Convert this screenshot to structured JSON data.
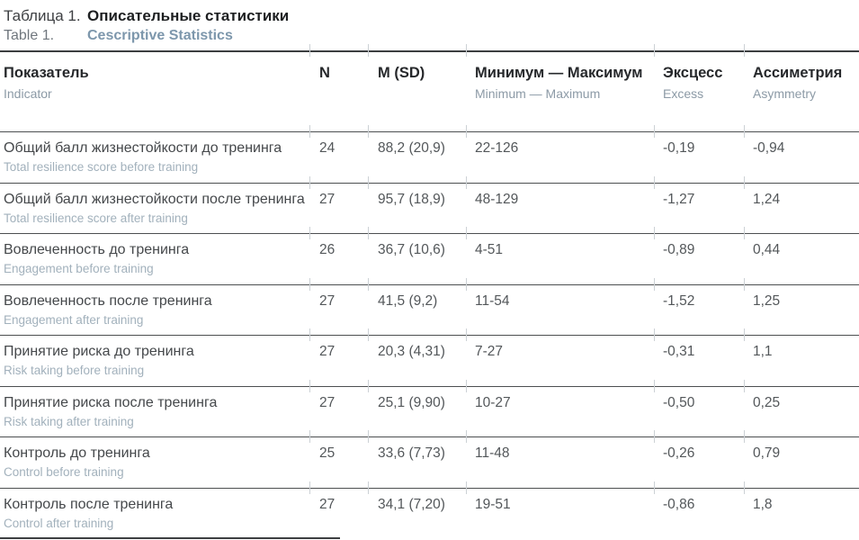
{
  "caption": {
    "label_ru": "Таблица 1.",
    "title_ru": "Описательные статистики",
    "label_en": "Table 1.",
    "title_en": "Cescriptive Statistics"
  },
  "table": {
    "header": {
      "indicator": {
        "ru": "Показатель",
        "en": "Indicator"
      },
      "n": {
        "ru": "N"
      },
      "msd": {
        "ru": "M (SD)"
      },
      "minmax": {
        "ru": "Минимум — Максимум",
        "en": "Minimum — Maximum"
      },
      "excess": {
        "ru": "Эксцесс",
        "en": "Excess"
      },
      "asymmetry": {
        "ru": "Ассиметрия",
        "en": "Asymmetry"
      }
    },
    "rows": [
      {
        "ru": "Общий балл жизнестойкости до тренинга",
        "en": "Total resilience score before training",
        "n": "24",
        "msd": "88,2 (20,9)",
        "minmax": "22-126",
        "excess": "-0,19",
        "asymmetry": "-0,94"
      },
      {
        "ru": "Общий балл жизнестойкости после тренинга",
        "en": "Total resilience score after training",
        "n": "27",
        "msd": "95,7 (18,9)",
        "minmax": "48-129",
        "excess": "-1,27",
        "asymmetry": "1,24"
      },
      {
        "ru": "Вовлеченность до тренинга",
        "en": "Engagement before training",
        "n": "26",
        "msd": "36,7 (10,6)",
        "minmax": "4-51",
        "excess": "-0,89",
        "asymmetry": "0,44"
      },
      {
        "ru": "Вовлеченность после тренинга",
        "en": "Engagement after training",
        "n": "27",
        "msd": "41,5 (9,2)",
        "minmax": "11-54",
        "excess": "-1,52",
        "asymmetry": "1,25"
      },
      {
        "ru": "Принятие риска до тренинга",
        "en": "Risk taking before training",
        "n": "27",
        "msd": "20,3 (4,31)",
        "minmax": "7-27",
        "excess": "-0,31",
        "asymmetry": "1,1"
      },
      {
        "ru": "Принятие риска после тренинга",
        "en": "Risk taking after training",
        "n": "27",
        "msd": "25,1 (9,90)",
        "minmax": "10-27",
        "excess": "-0,50",
        "asymmetry": "0,25"
      },
      {
        "ru": "Контроль до тренинга",
        "en": "Control before training",
        "n": "25",
        "msd": "33,6 (7,73)",
        "minmax": "11-48",
        "excess": "-0,26",
        "asymmetry": "0,79"
      },
      {
        "ru": "Контроль после тренинга",
        "en": "Control after training",
        "n": "27",
        "msd": "34,1 (7,20)",
        "minmax": "19-51",
        "excess": "-0,86",
        "asymmetry": "1,8"
      }
    ]
  },
  "colors": {
    "caption_title_ru": "#1d1f21",
    "caption_title_en": "#7d97ac",
    "header_text": "#26282b",
    "sub_label": "#a2b1bc",
    "rule_dark": "#3c3e40",
    "tick_light": "#ccd1d5"
  }
}
